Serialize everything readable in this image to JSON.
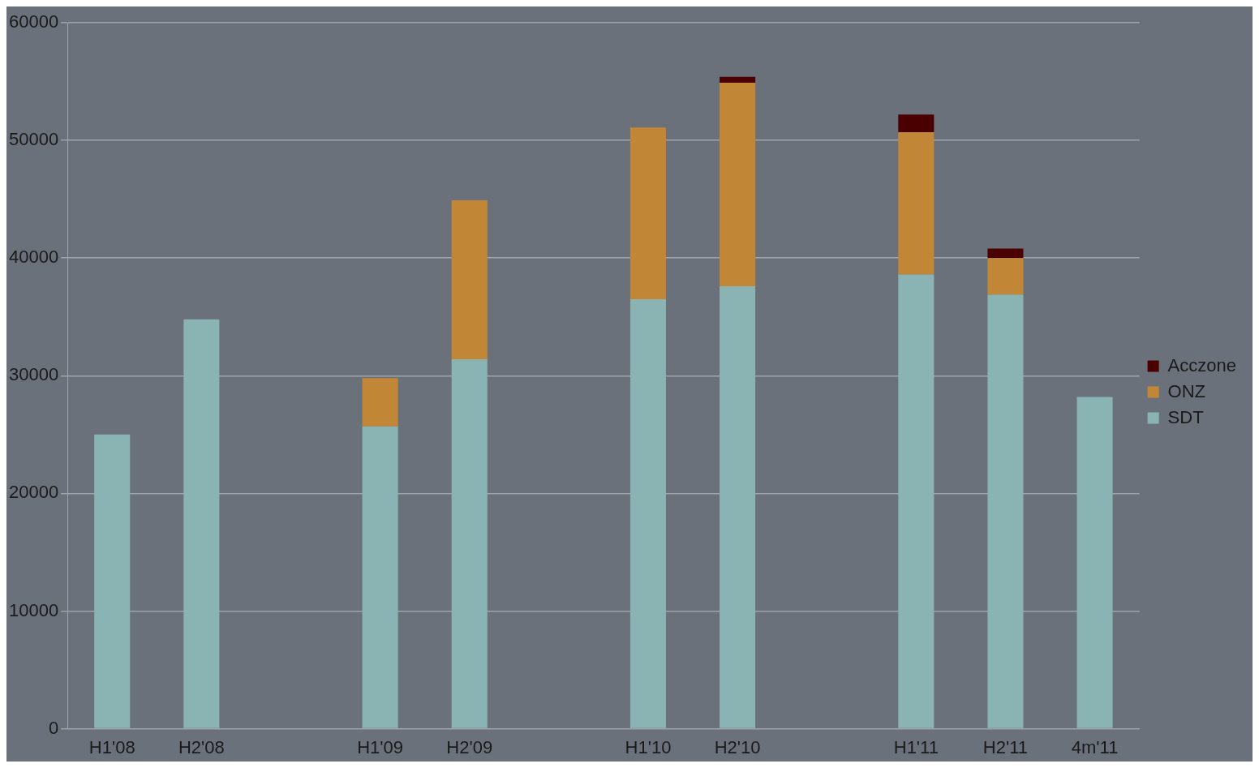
{
  "chart_data": {
    "type": "bar",
    "stacked": true,
    "categories": [
      "H1'08",
      "H2'08",
      null,
      "H1'09",
      "H2'09",
      null,
      "H1'10",
      "H2'10",
      null,
      "H1'11",
      "H2'11",
      "4m'11"
    ],
    "series": [
      {
        "name": "SDT",
        "color": "#8ab3b4",
        "values": [
          25000,
          34800,
          null,
          25700,
          31400,
          null,
          36500,
          37600,
          null,
          38600,
          36900,
          28200
        ]
      },
      {
        "name": "ONZ",
        "color": "#c28736",
        "values": [
          null,
          null,
          null,
          4100,
          13500,
          null,
          14600,
          17300,
          null,
          12100,
          3100,
          null
        ]
      },
      {
        "name": "Acczone",
        "color": "#4a0000",
        "values": [
          null,
          null,
          null,
          null,
          null,
          null,
          null,
          500,
          null,
          1500,
          800,
          null
        ]
      }
    ],
    "ylim": [
      0,
      60000
    ],
    "yticks": [
      0,
      10000,
      20000,
      30000,
      40000,
      50000,
      60000
    ],
    "grid": "y",
    "legend": "right"
  }
}
